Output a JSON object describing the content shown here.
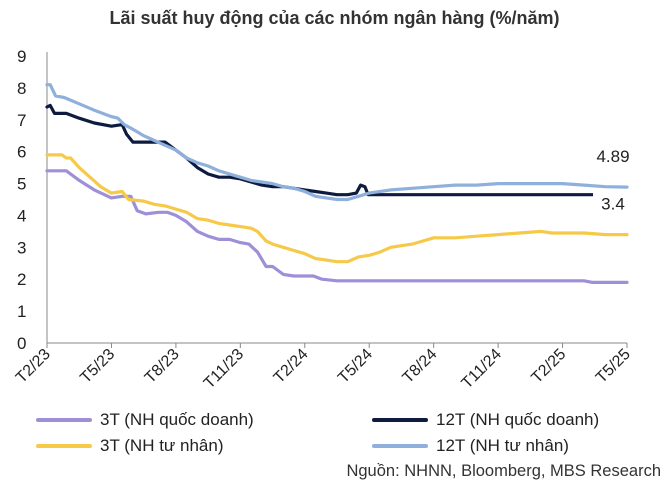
{
  "chart_data": {
    "type": "line",
    "title": "Lãi suất huy động của các nhóm ngân hàng (%/năm)",
    "ylim": [
      0,
      9
    ],
    "yticks": [
      0,
      1,
      2,
      3,
      4,
      5,
      6,
      7,
      8,
      9
    ],
    "xlim": [
      0,
      27
    ],
    "xticks": [
      {
        "x": 0,
        "label": "T2/23"
      },
      {
        "x": 3,
        "label": "T5/23"
      },
      {
        "x": 6,
        "label": "T8/23"
      },
      {
        "x": 9,
        "label": "T11/23"
      },
      {
        "x": 12,
        "label": "T2/24"
      },
      {
        "x": 15,
        "label": "T5/24"
      },
      {
        "x": 18,
        "label": "T8/24"
      },
      {
        "x": 21,
        "label": "T11/24"
      },
      {
        "x": 24,
        "label": "T2/25"
      },
      {
        "x": 27,
        "label": "T5/25"
      }
    ],
    "series": [
      {
        "name": "3T (NH quốc doanh)",
        "color": "#9E8FD6",
        "points": [
          [
            0,
            5.4
          ],
          [
            0.6,
            5.4
          ],
          [
            0.9,
            5.4
          ],
          [
            1.5,
            5.1
          ],
          [
            2.2,
            4.8
          ],
          [
            3,
            4.55
          ],
          [
            3.5,
            4.6
          ],
          [
            3.9,
            4.6
          ],
          [
            4.2,
            4.15
          ],
          [
            4.6,
            4.05
          ],
          [
            5.2,
            4.1
          ],
          [
            5.6,
            4.1
          ],
          [
            6,
            4.0
          ],
          [
            6.5,
            3.8
          ],
          [
            7,
            3.5
          ],
          [
            7.5,
            3.35
          ],
          [
            8,
            3.25
          ],
          [
            8.5,
            3.25
          ],
          [
            9,
            3.15
          ],
          [
            9.4,
            3.1
          ],
          [
            9.8,
            2.85
          ],
          [
            10.2,
            2.4
          ],
          [
            10.5,
            2.4
          ],
          [
            11,
            2.15
          ],
          [
            11.5,
            2.1
          ],
          [
            12,
            2.1
          ],
          [
            12.4,
            2.1
          ],
          [
            12.8,
            2.0
          ],
          [
            13.5,
            1.95
          ],
          [
            14.5,
            1.95
          ],
          [
            16,
            1.95
          ],
          [
            18,
            1.95
          ],
          [
            20,
            1.95
          ],
          [
            22,
            1.95
          ],
          [
            24,
            1.95
          ],
          [
            25,
            1.95
          ],
          [
            25.4,
            1.9
          ],
          [
            27,
            1.9
          ]
        ]
      },
      {
        "name": "12T (NH quốc doanh)",
        "color": "#0D1B3E",
        "points": [
          [
            0,
            7.4
          ],
          [
            0.15,
            7.45
          ],
          [
            0.35,
            7.2
          ],
          [
            0.9,
            7.2
          ],
          [
            1.5,
            7.05
          ],
          [
            2.2,
            6.9
          ],
          [
            3,
            6.8
          ],
          [
            3.5,
            6.85
          ],
          [
            3.7,
            6.55
          ],
          [
            4,
            6.3
          ],
          [
            4.5,
            6.3
          ],
          [
            5,
            6.3
          ],
          [
            5.5,
            6.3
          ],
          [
            6,
            6.05
          ],
          [
            6.5,
            5.8
          ],
          [
            7,
            5.5
          ],
          [
            7.5,
            5.3
          ],
          [
            8,
            5.2
          ],
          [
            8.5,
            5.2
          ],
          [
            9,
            5.15
          ],
          [
            9.5,
            5.05
          ],
          [
            10,
            4.95
          ],
          [
            10.5,
            4.9
          ],
          [
            11,
            4.9
          ],
          [
            11.5,
            4.85
          ],
          [
            12,
            4.8
          ],
          [
            12.5,
            4.75
          ],
          [
            13,
            4.7
          ],
          [
            13.5,
            4.65
          ],
          [
            14,
            4.65
          ],
          [
            14.4,
            4.7
          ],
          [
            14.6,
            4.95
          ],
          [
            14.8,
            4.9
          ],
          [
            14.95,
            4.65
          ],
          [
            15.2,
            4.65
          ],
          [
            16,
            4.65
          ],
          [
            18,
            4.65
          ],
          [
            20,
            4.65
          ],
          [
            22,
            4.65
          ],
          [
            24,
            4.65
          ],
          [
            26,
            4.65
          ],
          [
            27,
            4.65
          ]
        ]
      },
      {
        "name": "3T (NH tư nhân)",
        "color": "#F7C948",
        "points": [
          [
            0,
            5.9
          ],
          [
            0.7,
            5.9
          ],
          [
            0.9,
            5.8
          ],
          [
            1.1,
            5.8
          ],
          [
            1.5,
            5.5
          ],
          [
            2,
            5.2
          ],
          [
            2.5,
            4.9
          ],
          [
            3,
            4.7
          ],
          [
            3.5,
            4.75
          ],
          [
            3.8,
            4.5
          ],
          [
            4.5,
            4.45
          ],
          [
            5,
            4.35
          ],
          [
            5.5,
            4.3
          ],
          [
            6,
            4.2
          ],
          [
            6.5,
            4.1
          ],
          [
            7,
            3.9
          ],
          [
            7.5,
            3.85
          ],
          [
            8,
            3.75
          ],
          [
            8.5,
            3.7
          ],
          [
            9,
            3.65
          ],
          [
            9.5,
            3.6
          ],
          [
            9.8,
            3.5
          ],
          [
            10.2,
            3.2
          ],
          [
            10.5,
            3.1
          ],
          [
            11,
            3.0
          ],
          [
            11.5,
            2.9
          ],
          [
            12,
            2.8
          ],
          [
            12.5,
            2.65
          ],
          [
            13,
            2.6
          ],
          [
            13.5,
            2.55
          ],
          [
            14,
            2.55
          ],
          [
            14.5,
            2.7
          ],
          [
            15,
            2.75
          ],
          [
            15.5,
            2.85
          ],
          [
            16,
            3.0
          ],
          [
            16.5,
            3.05
          ],
          [
            17,
            3.1
          ],
          [
            17.5,
            3.2
          ],
          [
            18,
            3.3
          ],
          [
            19,
            3.3
          ],
          [
            20,
            3.35
          ],
          [
            21,
            3.4
          ],
          [
            22,
            3.45
          ],
          [
            23,
            3.5
          ],
          [
            23.5,
            3.45
          ],
          [
            24,
            3.45
          ],
          [
            25,
            3.45
          ],
          [
            26,
            3.4
          ],
          [
            27,
            3.4
          ]
        ]
      },
      {
        "name": "12T (NH tư nhân)",
        "color": "#8FB0DC",
        "points": [
          [
            0,
            8.1
          ],
          [
            0.15,
            8.1
          ],
          [
            0.4,
            7.75
          ],
          [
            0.8,
            7.7
          ],
          [
            1.5,
            7.5
          ],
          [
            2.2,
            7.3
          ],
          [
            3,
            7.1
          ],
          [
            3.3,
            7.05
          ],
          [
            3.6,
            6.85
          ],
          [
            4,
            6.7
          ],
          [
            4.5,
            6.5
          ],
          [
            5,
            6.35
          ],
          [
            5.5,
            6.2
          ],
          [
            6,
            6.05
          ],
          [
            6.5,
            5.8
          ],
          [
            7,
            5.65
          ],
          [
            7.5,
            5.55
          ],
          [
            8,
            5.4
          ],
          [
            8.5,
            5.3
          ],
          [
            9,
            5.2
          ],
          [
            9.5,
            5.1
          ],
          [
            10,
            5.05
          ],
          [
            10.5,
            5.0
          ],
          [
            11,
            4.9
          ],
          [
            11.5,
            4.85
          ],
          [
            12,
            4.75
          ],
          [
            12.5,
            4.6
          ],
          [
            13,
            4.55
          ],
          [
            13.5,
            4.5
          ],
          [
            14,
            4.5
          ],
          [
            14.5,
            4.6
          ],
          [
            15,
            4.7
          ],
          [
            15.5,
            4.75
          ],
          [
            16,
            4.8
          ],
          [
            17,
            4.85
          ],
          [
            18,
            4.9
          ],
          [
            19,
            4.95
          ],
          [
            20,
            4.95
          ],
          [
            21,
            5.0
          ],
          [
            22,
            5.0
          ],
          [
            23,
            5.0
          ],
          [
            24,
            5.0
          ],
          [
            25,
            4.95
          ],
          [
            26,
            4.9
          ],
          [
            27,
            4.89
          ]
        ]
      }
    ],
    "annotations": [
      {
        "text": "4.89",
        "series": "12T (NH tư nhân)"
      },
      {
        "text": "3.4",
        "series": "3T (NH tư nhân)"
      }
    ],
    "legend": {
      "position": "bottom",
      "items": [
        {
          "label": "3T (NH quốc doanh)",
          "color": "#9E8FD6"
        },
        {
          "label": "12T (NH quốc doanh)",
          "color": "#0D1B3E"
        },
        {
          "label": "3T (NH tư nhân)",
          "color": "#F7C948"
        },
        {
          "label": "12T (NH tư nhân)",
          "color": "#8FB0DC"
        }
      ]
    },
    "source": "Nguồn: NHNN, Bloomberg, MBS Research",
    "grid": false
  }
}
